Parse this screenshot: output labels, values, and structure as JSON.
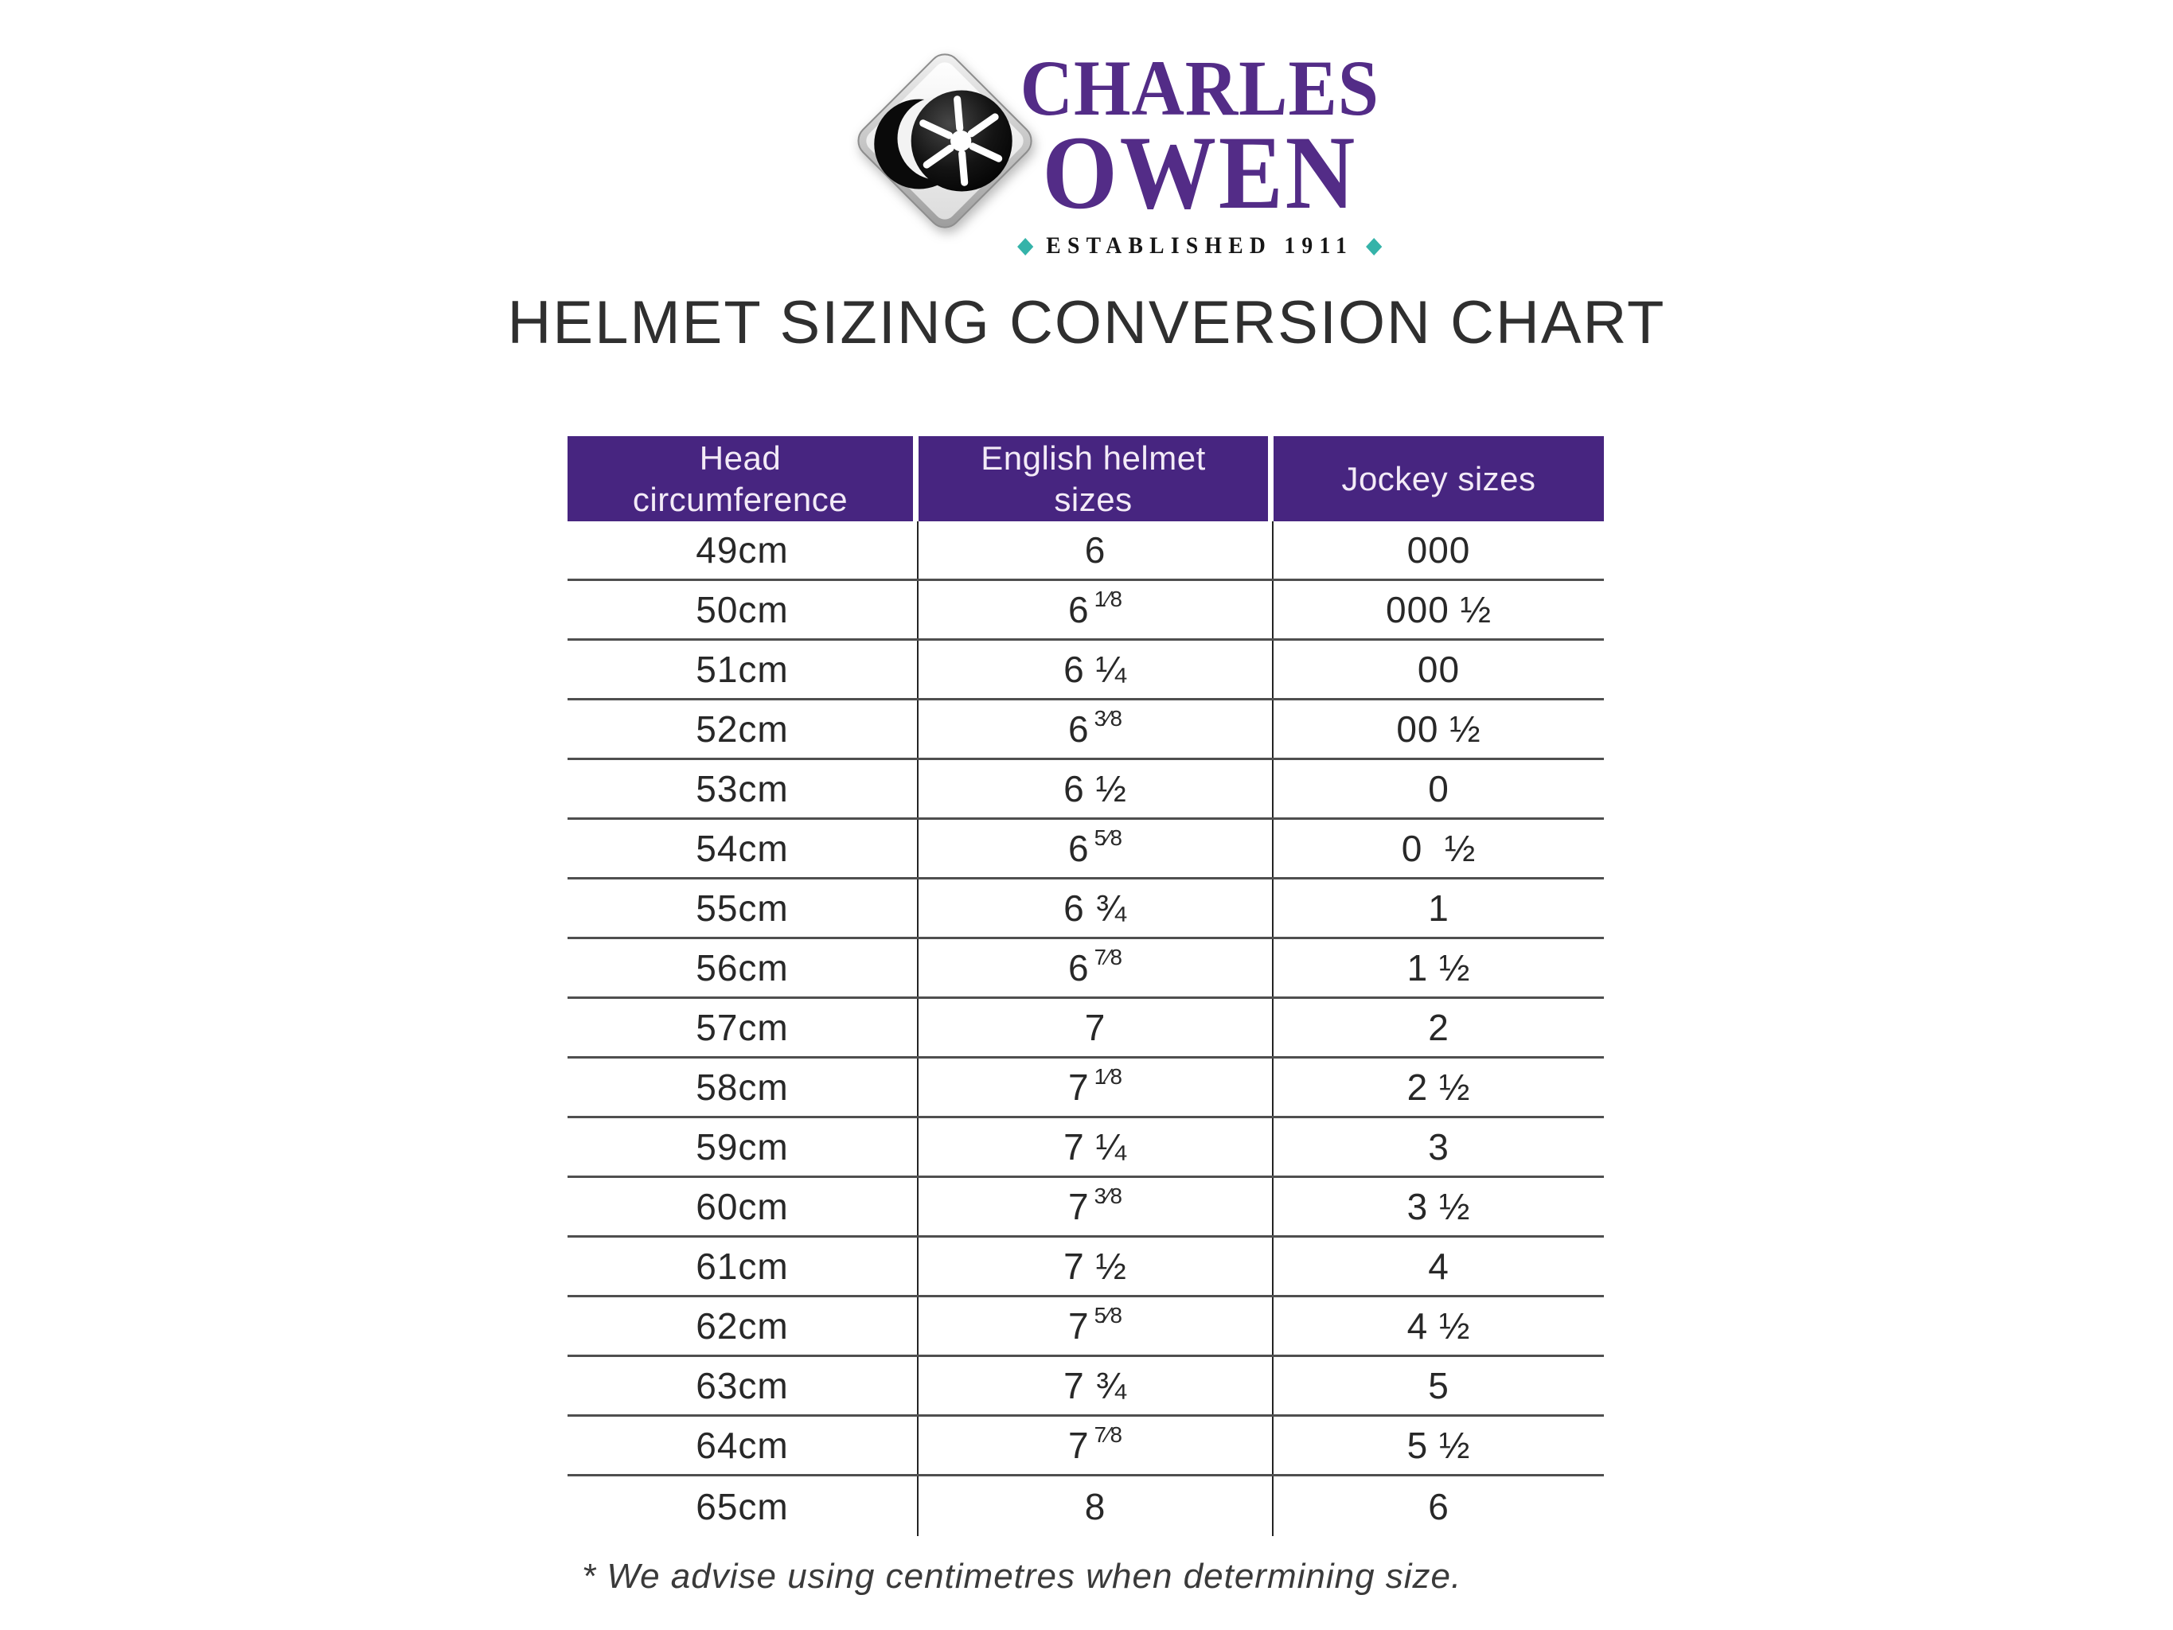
{
  "brand": {
    "name_line1": "CHARLES",
    "name_line2": "OWEN",
    "established": "ESTABLISHED 1911"
  },
  "icons": {
    "teal_diamond": "◆"
  },
  "page": {
    "title": "HELMET SIZING CONVERSION CHART",
    "footnote": "* We advise using centimetres when determining size."
  },
  "table": {
    "headers": [
      "Head\ncircumference",
      "English helmet\nsizes",
      "Jockey sizes"
    ],
    "rows": [
      {
        "head_circumference": "49cm",
        "english_base": "6",
        "english_sup": "",
        "jockey": "000"
      },
      {
        "head_circumference": "50cm",
        "english_base": "6",
        "english_sup": "1⁄8",
        "jockey": "000 ½"
      },
      {
        "head_circumference": "51cm",
        "english_base": "6 ¼",
        "english_sup": "",
        "jockey": "00"
      },
      {
        "head_circumference": "52cm",
        "english_base": "6",
        "english_sup": "3⁄8",
        "jockey": "00 ½"
      },
      {
        "head_circumference": "53cm",
        "english_base": "6 ½",
        "english_sup": "",
        "jockey": "0"
      },
      {
        "head_circumference": "54cm",
        "english_base": "6",
        "english_sup": "5⁄8",
        "jockey": "0  ½"
      },
      {
        "head_circumference": "55cm",
        "english_base": "6 ¾",
        "english_sup": "",
        "jockey": "1"
      },
      {
        "head_circumference": "56cm",
        "english_base": "6",
        "english_sup": "7⁄8",
        "jockey": "1 ½"
      },
      {
        "head_circumference": "57cm",
        "english_base": "7",
        "english_sup": "",
        "jockey": "2"
      },
      {
        "head_circumference": "58cm",
        "english_base": "7",
        "english_sup": "1⁄8",
        "jockey": "2 ½"
      },
      {
        "head_circumference": "59cm",
        "english_base": "7 ¼",
        "english_sup": "",
        "jockey": "3"
      },
      {
        "head_circumference": "60cm",
        "english_base": "7",
        "english_sup": "3⁄8",
        "jockey": "3 ½"
      },
      {
        "head_circumference": "61cm",
        "english_base": "7 ½",
        "english_sup": "",
        "jockey": "4"
      },
      {
        "head_circumference": "62cm",
        "english_base": "7",
        "english_sup": "5⁄8",
        "jockey": "4 ½"
      },
      {
        "head_circumference": "63cm",
        "english_base": "7 ¾",
        "english_sup": "",
        "jockey": "5"
      },
      {
        "head_circumference": "64cm",
        "english_base": "7",
        "english_sup": "7⁄8",
        "jockey": "5 ½"
      },
      {
        "head_circumference": "65cm",
        "english_base": "8",
        "english_sup": "",
        "jockey": "6"
      }
    ]
  },
  "colors": {
    "header_purple": "#472580",
    "brand_purple": "#532c87",
    "teal": "#35b3a9",
    "row_line_gray": "#4f4f4f",
    "column_line_dark": "#242424",
    "title_text": "#2f2f2f"
  }
}
